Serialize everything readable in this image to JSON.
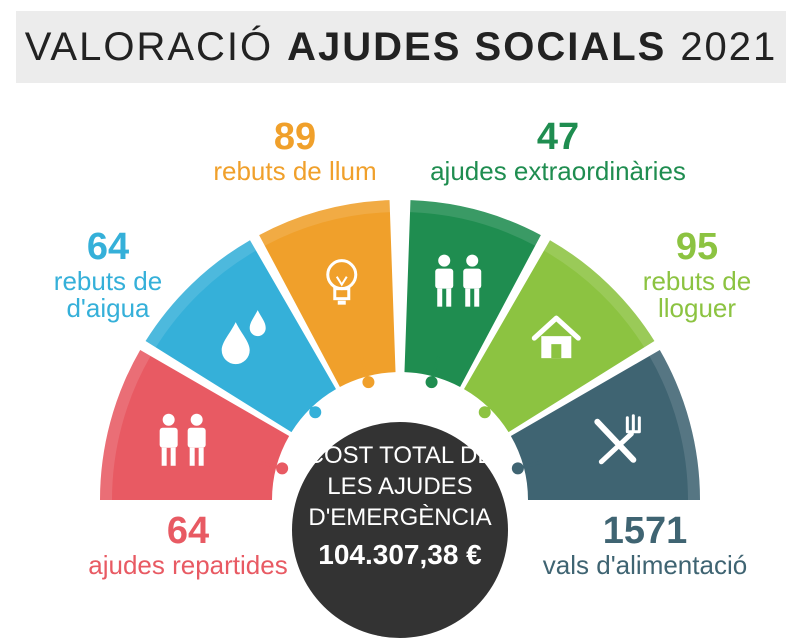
{
  "title": {
    "part1": "VALORACIÓ",
    "part2": "AJUDES SOCIALS",
    "part3": "2021"
  },
  "colors": {
    "red": "#e85a63",
    "blue": "#35b0d9",
    "orange": "#f0a02b",
    "green": "#1f8d50",
    "lightgreen": "#8cc341",
    "slate": "#3f6472",
    "center": "#333333",
    "titlebar": "#ececec"
  },
  "segments": [
    {
      "name": "ajudes-repartides",
      "value": "64",
      "label_line1": "ajudes repartides",
      "label_line2": "",
      "color": "#e85a63",
      "icon": "people-icon"
    },
    {
      "name": "rebuts-aigua",
      "value": "64",
      "label_line1": "rebuts de",
      "label_line2": "d'aigua",
      "color": "#35b0d9",
      "icon": "water-drops-icon"
    },
    {
      "name": "rebuts-llum",
      "value": "89",
      "label_line1": "rebuts de llum",
      "label_line2": "",
      "color": "#f0a02b",
      "icon": "lightbulb-icon"
    },
    {
      "name": "ajudes-extraordinaries",
      "value": "47",
      "label_line1": "ajudes extraordinàries",
      "label_line2": "",
      "color": "#1f8d50",
      "icon": "people-icon"
    },
    {
      "name": "rebuts-lloguer",
      "value": "95",
      "label_line1": "rebuts de",
      "label_line2": "lloguer",
      "color": "#8cc341",
      "icon": "house-icon"
    },
    {
      "name": "vals-alimentacio",
      "value": "1571",
      "label_line1": "vals d'alimentació",
      "label_line2": "",
      "color": "#3f6472",
      "icon": "knife-fork-icon"
    }
  ],
  "center": {
    "line1": "COST TOTAL DE",
    "line2": "LES AJUDES",
    "line3": "D'EMERGÈNCIA",
    "total": "104.307,38 €"
  }
}
